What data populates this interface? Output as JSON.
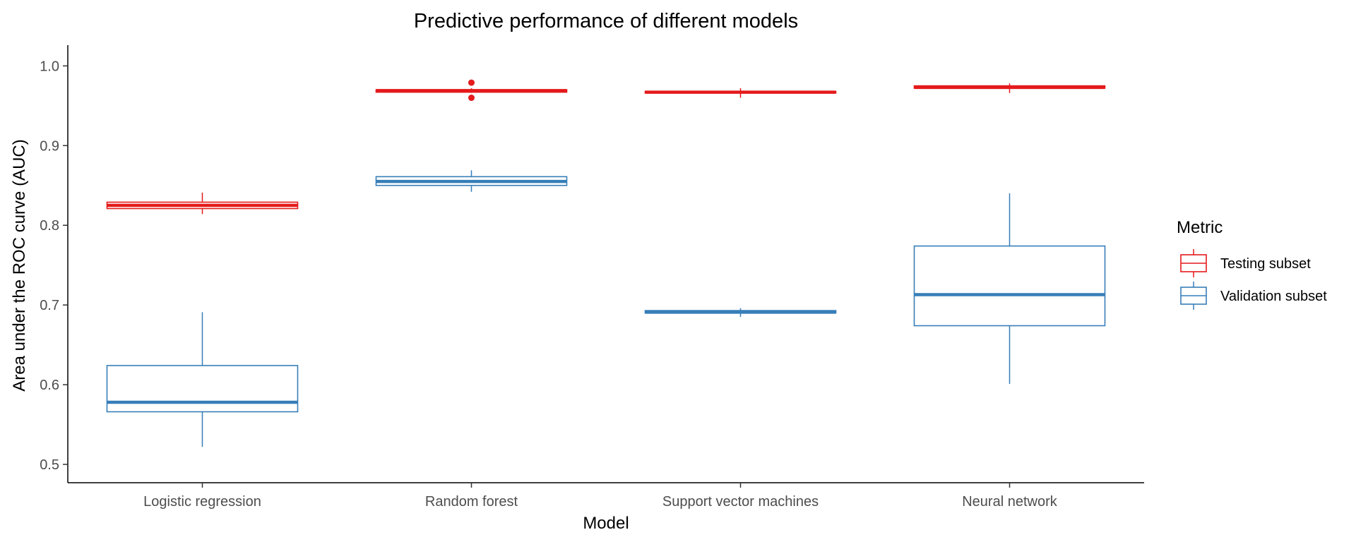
{
  "chart_data": {
    "type": "boxplot",
    "title": "Predictive performance of different models",
    "xlabel": "Model",
    "ylabel": "Area under the ROC curve (AUC)",
    "categories": [
      "Logistic regression",
      "Random forest",
      "Support vector machines",
      "Neural network"
    ],
    "ylim": [
      0.477,
      1.026
    ],
    "yticks": [
      0.5,
      0.6,
      0.7,
      0.8,
      0.9,
      1.0
    ],
    "ytick_labels": [
      "0.5",
      "0.6",
      "0.7",
      "0.8",
      "0.9",
      "1.0"
    ],
    "grid": false,
    "legend": {
      "title": "Metric",
      "position": "right"
    },
    "series": [
      {
        "name": "Testing subset",
        "color": "#e41a1c",
        "boxes": [
          {
            "whisker_low": 0.814,
            "q1": 0.821,
            "median": 0.825,
            "q3": 0.829,
            "whisker_high": 0.841,
            "outliers": []
          },
          {
            "whisker_low": 0.966,
            "q1": 0.967,
            "median": 0.969,
            "q3": 0.97,
            "whisker_high": 0.972,
            "outliers": [
              0.96,
              0.979
            ]
          },
          {
            "whisker_low": 0.96,
            "q1": 0.966,
            "median": 0.967,
            "q3": 0.968,
            "whisker_high": 0.972,
            "outliers": []
          },
          {
            "whisker_low": 0.966,
            "q1": 0.972,
            "median": 0.973,
            "q3": 0.975,
            "whisker_high": 0.978,
            "outliers": []
          }
        ]
      },
      {
        "name": "Validation subset",
        "color": "#377eb8",
        "boxes": [
          {
            "whisker_low": 0.522,
            "q1": 0.566,
            "median": 0.578,
            "q3": 0.624,
            "whisker_high": 0.691,
            "outliers": []
          },
          {
            "whisker_low": 0.842,
            "q1": 0.85,
            "median": 0.855,
            "q3": 0.861,
            "whisker_high": 0.869,
            "outliers": []
          },
          {
            "whisker_low": 0.685,
            "q1": 0.69,
            "median": 0.691,
            "q3": 0.693,
            "whisker_high": 0.696,
            "outliers": []
          },
          {
            "whisker_low": 0.601,
            "q1": 0.674,
            "median": 0.713,
            "q3": 0.774,
            "whisker_high": 0.84,
            "outliers": []
          }
        ]
      }
    ]
  }
}
